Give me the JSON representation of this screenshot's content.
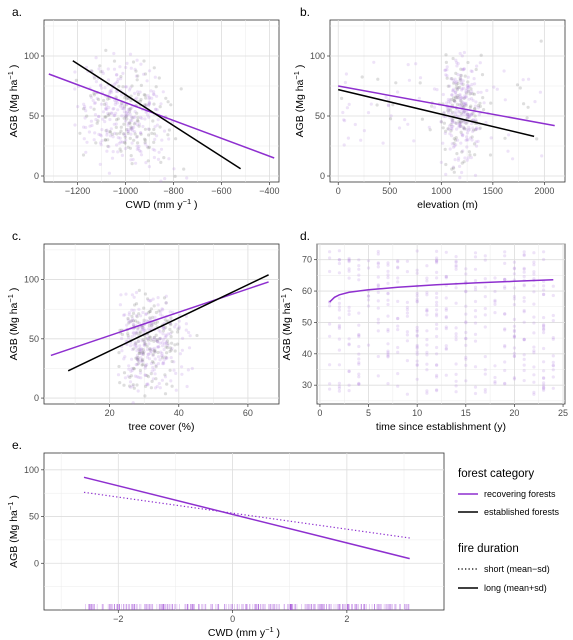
{
  "colors": {
    "recovering": "#8e2fcf",
    "established": "#000000",
    "rug": "#9b3fd6"
  },
  "legend": {
    "forest_title": "forest category",
    "forest_items": [
      "recovering forests",
      "established forests"
    ],
    "fire_title": "fire duration",
    "fire_items": [
      "short (mean−sd)",
      "long (mean+sd)"
    ]
  },
  "chart_data": [
    {
      "panel": "a.",
      "type": "scatter",
      "xlabel": "CWD (mm  y",
      "xlabel_sup": "−1",
      "xlabel_end": ")",
      "ylabel": "AGB (Mg  ha",
      "ylabel_sup": "−1",
      "ylabel_end": ")",
      "xlim": [
        -1340,
        -360
      ],
      "ylim": [
        -5,
        130
      ],
      "xticks": [
        -1200,
        -1000,
        -800,
        -600,
        -400
      ],
      "xtick_labels": [
        "−1200",
        "−1000",
        "−800",
        "−600",
        "−400"
      ],
      "yticks": [
        0,
        50,
        100
      ],
      "grid": true,
      "series": [
        {
          "group": "recovering",
          "trend": [
            [
              -1320,
              85
            ],
            [
              -380,
              15
            ]
          ]
        },
        {
          "group": "established",
          "trend": [
            [
              -1220,
              96
            ],
            [
              -520,
              6
            ]
          ]
        }
      ]
    },
    {
      "panel": "b.",
      "type": "scatter",
      "xlabel": "elevation (m)",
      "ylabel": "AGB (Mg  ha",
      "ylabel_sup": "−1",
      "ylabel_end": ")",
      "xlim": [
        -80,
        2200
      ],
      "ylim": [
        -5,
        130
      ],
      "xticks": [
        0,
        500,
        1000,
        1500,
        2000
      ],
      "xtick_labels": [
        "0",
        "500",
        "1000",
        "1500",
        "2000"
      ],
      "yticks": [
        0,
        50,
        100
      ],
      "grid": true,
      "series": [
        {
          "group": "recovering",
          "trend": [
            [
              0,
              75
            ],
            [
              2100,
              42
            ]
          ]
        },
        {
          "group": "established",
          "trend": [
            [
              0,
              72
            ],
            [
              1900,
              33
            ]
          ]
        }
      ]
    },
    {
      "panel": "c.",
      "type": "scatter",
      "xlabel": "tree cover (%)",
      "ylabel": "AGB (Mg  ha",
      "ylabel_sup": "−1",
      "ylabel_end": ")",
      "xlim": [
        1,
        69
      ],
      "ylim": [
        -5,
        130
      ],
      "xticks": [
        20,
        40,
        60
      ],
      "xtick_labels": [
        "20",
        "40",
        "60"
      ],
      "yticks": [
        0,
        50,
        100
      ],
      "grid": true,
      "series": [
        {
          "group": "recovering",
          "trend": [
            [
              3,
              36
            ],
            [
              66,
              98
            ]
          ]
        },
        {
          "group": "established",
          "trend": [
            [
              8,
              23
            ],
            [
              66,
              104
            ]
          ]
        }
      ]
    },
    {
      "panel": "d.",
      "type": "scatter",
      "xlabel": "time since establishment (y)",
      "ylabel": "AGB (Mg  ha",
      "ylabel_sup": "−1",
      "ylabel_end": ")",
      "xlim": [
        -0.3,
        25.2
      ],
      "ylim": [
        24,
        75
      ],
      "xticks": [
        0,
        5,
        10,
        15,
        20,
        25
      ],
      "xtick_labels": [
        "0",
        "5",
        "10",
        "15",
        "20",
        "25"
      ],
      "yticks": [
        30,
        40,
        50,
        60,
        70
      ],
      "grid": true,
      "series": [
        {
          "group": "recovering",
          "trend": [
            [
              1,
              56.5
            ],
            [
              1.5,
              58
            ],
            [
              2,
              58.8
            ],
            [
              3,
              59.6
            ],
            [
              5,
              60.4
            ],
            [
              8,
              61.2
            ],
            [
              12,
              62
            ],
            [
              16,
              62.6
            ],
            [
              20,
              63.1
            ],
            [
              24,
              63.6
            ]
          ]
        }
      ]
    },
    {
      "panel": "e.",
      "type": "line",
      "xlabel": "CWD (mm  y",
      "xlabel_sup": "−1",
      "xlabel_end": ")",
      "ylabel": "AGB (Mg  ha",
      "ylabel_sup": "−1",
      "ylabel_end": ")",
      "xlim": [
        -3.3,
        3.7
      ],
      "ylim": [
        -50,
        118
      ],
      "xticks": [
        -2,
        0,
        2
      ],
      "xtick_labels": [
        "−2",
        "0",
        "2"
      ],
      "yticks": [
        0,
        50,
        100
      ],
      "grid": true,
      "series": [
        {
          "group": "recovering",
          "fire": "short (mean−sd)",
          "style": "dotted",
          "x": [
            -2.6,
            3.1
          ],
          "y": [
            76,
            27
          ]
        },
        {
          "group": "recovering",
          "fire": "long (mean+sd)",
          "style": "solid",
          "x": [
            -2.6,
            3.1
          ],
          "y": [
            92,
            5
          ]
        }
      ],
      "rug_range": [
        -2.6,
        3.1
      ]
    }
  ]
}
